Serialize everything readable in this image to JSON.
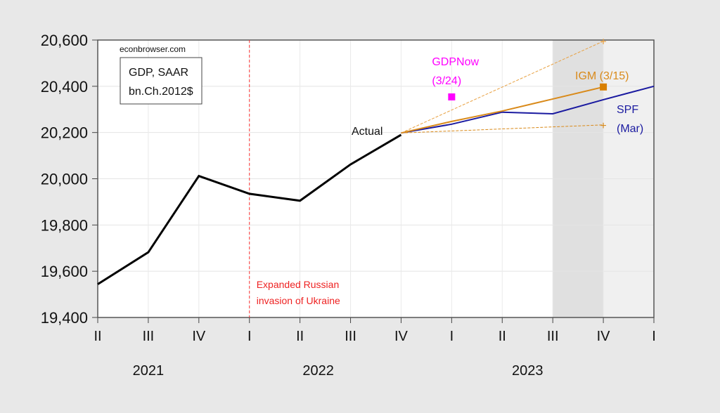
{
  "chart_data": {
    "type": "line",
    "source_label": "econbrowser.com",
    "legend_box": [
      "GDP, SAAR",
      "bn.Ch.2012$"
    ],
    "x_ticks": [
      "II",
      "III",
      "IV",
      "I",
      "II",
      "III",
      "IV",
      "I",
      "II",
      "III",
      "IV",
      "I"
    ],
    "year_labels": [
      {
        "label": "2021",
        "at": 1
      },
      {
        "label": "2022",
        "at": 4.5
      },
      {
        "label": "2023",
        "at": 8.5
      }
    ],
    "ylim": [
      19400,
      20600
    ],
    "y_ticks": [
      19400,
      19600,
      19800,
      20000,
      20200,
      20400,
      20600
    ],
    "y_tick_labels": [
      "19,400",
      "19,600",
      "19,800",
      "20,000",
      "20,200",
      "20,400",
      "20,600"
    ],
    "grid": true,
    "shaded": [
      {
        "from": 9,
        "to": 10,
        "color": "#e0e0e0"
      },
      {
        "from": 10,
        "to": 11,
        "color": "#f0f0f0"
      }
    ],
    "vline": {
      "at": 3,
      "color": "#ff3333",
      "label": [
        "Expanded Russian",
        "invasion of Ukraine"
      ]
    },
    "series": [
      {
        "name": "Actual",
        "color": "#000000",
        "x": [
          0,
          1,
          2,
          3,
          4,
          5,
          6
        ],
        "values": [
          19544,
          19682,
          20012,
          19935,
          19905,
          20062,
          20190
        ]
      },
      {
        "name": "SPF (Mar)",
        "label": [
          "SPF",
          "(Mar)"
        ],
        "color": "#1a1aa0",
        "x": [
          6,
          7,
          8,
          9,
          10,
          11
        ],
        "values": [
          20198,
          20236,
          20288,
          20281,
          20342,
          20400
        ]
      },
      {
        "name": "IGM (3/15)",
        "label": [
          "IGM (3/15)"
        ],
        "color": "#d98a1a",
        "x": [
          6,
          7,
          8,
          9,
          10
        ],
        "values": [
          20198,
          20248,
          20293,
          20345,
          20397
        ]
      },
      {
        "name": "IGM upper",
        "color": "#e8a040",
        "dashed": true,
        "x": [
          6,
          10
        ],
        "values": [
          20198,
          20595
        ]
      },
      {
        "name": "IGM lower",
        "color": "#d98a1a",
        "dashed": true,
        "x": [
          6,
          10
        ],
        "values": [
          20198,
          20233
        ]
      }
    ],
    "points": [
      {
        "name": "GDPNow (3/24)",
        "label": [
          "GDPNow",
          "(3/24)"
        ],
        "color": "#ff00ff",
        "x": 7,
        "value": 20354
      },
      {
        "name": "IGM (3/15)",
        "color": "#d98000",
        "x": 10,
        "value": 20397
      }
    ],
    "actual_label": "Actual"
  }
}
